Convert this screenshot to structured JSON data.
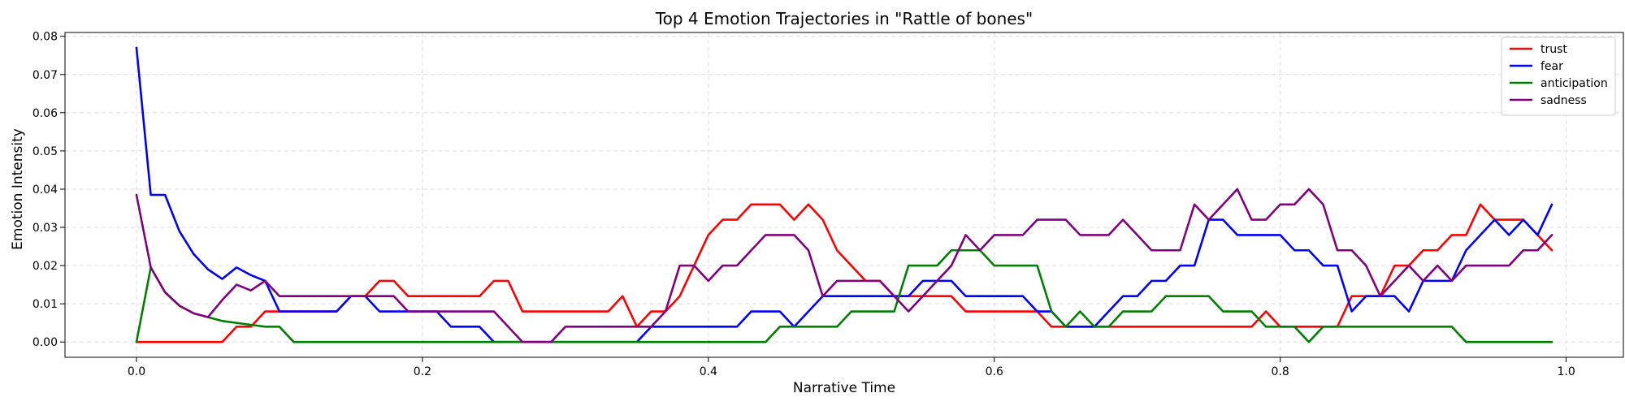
{
  "chart_data": {
    "type": "line",
    "title": "Top 4 Emotion Trajectories in \"Rattle of bones\"",
    "xlabel": "Narrative Time",
    "ylabel": "Emotion Intensity",
    "xlim": [
      -0.05,
      1.04
    ],
    "ylim": [
      -0.004,
      0.081
    ],
    "xticks": [
      0.0,
      0.2,
      0.4,
      0.6,
      0.8,
      1.0
    ],
    "xtick_labels": [
      "0.0",
      "0.2",
      "0.4",
      "0.6",
      "0.8",
      "1.0"
    ],
    "yticks": [
      0.0,
      0.01,
      0.02,
      0.03,
      0.04,
      0.05,
      0.06,
      0.07,
      0.08
    ],
    "ytick_labels": [
      "0.00",
      "0.01",
      "0.02",
      "0.03",
      "0.04",
      "0.05",
      "0.06",
      "0.07",
      "0.08"
    ],
    "grid": true,
    "legend_position": "top-right",
    "x": [
      0.0,
      0.01,
      0.02,
      0.03,
      0.04,
      0.05,
      0.06,
      0.07,
      0.08,
      0.09,
      0.1,
      0.11,
      0.12,
      0.13,
      0.14,
      0.15,
      0.16,
      0.17,
      0.18,
      0.19,
      0.2,
      0.21,
      0.22,
      0.23,
      0.24,
      0.25,
      0.26,
      0.27,
      0.28,
      0.29,
      0.3,
      0.31,
      0.32,
      0.33,
      0.34,
      0.35,
      0.36,
      0.37,
      0.38,
      0.39,
      0.4,
      0.41,
      0.42,
      0.43,
      0.44,
      0.45,
      0.46,
      0.47,
      0.48,
      0.49,
      0.5,
      0.51,
      0.52,
      0.53,
      0.54,
      0.55,
      0.56,
      0.57,
      0.58,
      0.59,
      0.6,
      0.61,
      0.62,
      0.63,
      0.64,
      0.65,
      0.66,
      0.67,
      0.68,
      0.69,
      0.7,
      0.71,
      0.72,
      0.73,
      0.74,
      0.75,
      0.76,
      0.77,
      0.78,
      0.79,
      0.8,
      0.81,
      0.82,
      0.83,
      0.84,
      0.85,
      0.86,
      0.87,
      0.88,
      0.89,
      0.9,
      0.91,
      0.92,
      0.93,
      0.94,
      0.95,
      0.96,
      0.97,
      0.98,
      0.99
    ],
    "series": [
      {
        "name": "trust",
        "color": "#ff0000",
        "values": [
          0,
          0,
          0,
          0,
          0,
          0,
          0,
          0.004,
          0.004,
          0.008,
          0.008,
          0.008,
          0.008,
          0.008,
          0.008,
          0.012,
          0.012,
          0.016,
          0.016,
          0.012,
          0.012,
          0.012,
          0.012,
          0.012,
          0.012,
          0.016,
          0.016,
          0.008,
          0.008,
          0.008,
          0.008,
          0.008,
          0.008,
          0.008,
          0.012,
          0.004,
          0.008,
          0.008,
          0.012,
          0.02,
          0.028,
          0.032,
          0.032,
          0.036,
          0.036,
          0.036,
          0.032,
          0.036,
          0.032,
          0.024,
          0.02,
          0.016,
          0.016,
          0.012,
          0.012,
          0.012,
          0.012,
          0.012,
          0.008,
          0.008,
          0.008,
          0.008,
          0.008,
          0.008,
          0.004,
          0.004,
          0.004,
          0.004,
          0.004,
          0.004,
          0.004,
          0.004,
          0.004,
          0.004,
          0.004,
          0.004,
          0.004,
          0.004,
          0.004,
          0.008,
          0.004,
          0.004,
          0.004,
          0.004,
          0.004,
          0.012,
          0.012,
          0.012,
          0.02,
          0.02,
          0.024,
          0.024,
          0.028,
          0.028,
          0.036,
          0.032,
          0.032,
          0.032,
          0.028,
          0.024
        ]
      },
      {
        "name": "fear",
        "color": "#0000ff",
        "values": [
          0.077,
          0.0385,
          0.0385,
          0.029,
          0.023,
          0.019,
          0.0165,
          0.0195,
          0.0175,
          0.016,
          0.008,
          0.008,
          0.008,
          0.008,
          0.008,
          0.012,
          0.012,
          0.008,
          0.008,
          0.008,
          0.008,
          0.008,
          0.004,
          0.004,
          0.004,
          0,
          0,
          0,
          0,
          0,
          0,
          0,
          0,
          0,
          0,
          0,
          0.004,
          0.004,
          0.004,
          0.004,
          0.004,
          0.004,
          0.004,
          0.008,
          0.008,
          0.008,
          0.004,
          0.008,
          0.012,
          0.012,
          0.012,
          0.012,
          0.012,
          0.012,
          0.012,
          0.016,
          0.016,
          0.016,
          0.012,
          0.012,
          0.012,
          0.012,
          0.012,
          0.008,
          0.008,
          0.004,
          0.004,
          0.004,
          0.008,
          0.012,
          0.012,
          0.016,
          0.016,
          0.02,
          0.02,
          0.032,
          0.032,
          0.028,
          0.028,
          0.028,
          0.028,
          0.024,
          0.024,
          0.02,
          0.02,
          0.008,
          0.012,
          0.012,
          0.012,
          0.008,
          0.016,
          0.016,
          0.016,
          0.024,
          0.028,
          0.032,
          0.028,
          0.032,
          0.028,
          0.036
        ]
      },
      {
        "name": "anticipation",
        "color": "#008000",
        "values": [
          0,
          0.0195,
          0.013,
          0.0095,
          0.0075,
          0.0065,
          0.0055,
          0.005,
          0.0045,
          0.004,
          0.004,
          0,
          0,
          0,
          0,
          0,
          0,
          0,
          0,
          0,
          0,
          0,
          0,
          0,
          0,
          0,
          0,
          0,
          0,
          0,
          0,
          0,
          0,
          0,
          0,
          0,
          0,
          0,
          0,
          0,
          0,
          0,
          0,
          0,
          0,
          0.004,
          0.004,
          0.004,
          0.004,
          0.004,
          0.008,
          0.008,
          0.008,
          0.008,
          0.02,
          0.02,
          0.02,
          0.024,
          0.024,
          0.024,
          0.02,
          0.02,
          0.02,
          0.02,
          0.008,
          0.004,
          0.008,
          0.004,
          0.004,
          0.008,
          0.008,
          0.008,
          0.012,
          0.012,
          0.012,
          0.012,
          0.008,
          0.008,
          0.008,
          0.004,
          0.004,
          0.004,
          0,
          0.004,
          0.004,
          0.004,
          0.004,
          0.004,
          0.004,
          0.004,
          0.004,
          0.004,
          0.004,
          0,
          0,
          0,
          0,
          0,
          0,
          0
        ]
      },
      {
        "name": "sadness",
        "color": "#800080",
        "values": [
          0.0385,
          0.0195,
          0.013,
          0.0095,
          0.0075,
          0.0065,
          0.011,
          0.015,
          0.0135,
          0.016,
          0.012,
          0.012,
          0.012,
          0.012,
          0.012,
          0.012,
          0.012,
          0.012,
          0.012,
          0.008,
          0.008,
          0.008,
          0.008,
          0.008,
          0.008,
          0.008,
          0.004,
          0,
          0,
          0,
          0.004,
          0.004,
          0.004,
          0.004,
          0.004,
          0.004,
          0.004,
          0.008,
          0.02,
          0.02,
          0.016,
          0.02,
          0.02,
          0.024,
          0.028,
          0.028,
          0.028,
          0.024,
          0.012,
          0.016,
          0.016,
          0.016,
          0.016,
          0.012,
          0.008,
          0.012,
          0.016,
          0.02,
          0.028,
          0.024,
          0.028,
          0.028,
          0.028,
          0.032,
          0.032,
          0.032,
          0.028,
          0.028,
          0.028,
          0.032,
          0.028,
          0.024,
          0.024,
          0.024,
          0.036,
          0.032,
          0.036,
          0.04,
          0.032,
          0.032,
          0.036,
          0.036,
          0.04,
          0.036,
          0.024,
          0.024,
          0.02,
          0.012,
          0.016,
          0.02,
          0.016,
          0.02,
          0.016,
          0.02,
          0.02,
          0.02,
          0.02,
          0.024,
          0.024,
          0.028
        ]
      }
    ]
  }
}
